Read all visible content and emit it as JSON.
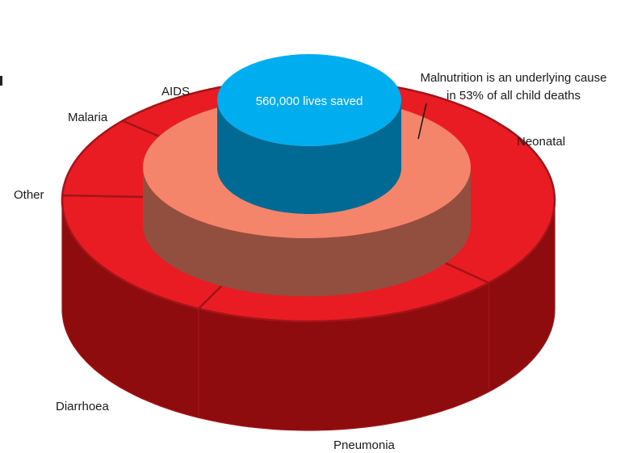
{
  "chart_data": {
    "type": "pie",
    "style": "3d-stacked-rings",
    "outer_ring": {
      "slices": [
        {
          "label": "AIDS",
          "value": 2
        },
        {
          "label": "Neonatal",
          "value": 37
        },
        {
          "label": "Pneumonia",
          "value": 19
        },
        {
          "label": "Diarrhoea",
          "value": 17
        },
        {
          "label": "Other",
          "value": 10
        },
        {
          "label": "Malaria",
          "value": 8
        }
      ]
    },
    "middle_ring": {
      "annotation_lines": [
        "Malnutrition is an underlying cause",
        "in 53% of all child deaths"
      ],
      "value": 53
    },
    "center": {
      "label": "560,000 lives saved"
    },
    "colors": {
      "outer_top": "#e91c24",
      "outer_side": "#8e0c0e",
      "outer_separator": "#a31418",
      "middle_top": "#f4846a",
      "middle_side": "#924e3e",
      "center_top": "#00aeef",
      "center_side": "#006a94"
    }
  }
}
